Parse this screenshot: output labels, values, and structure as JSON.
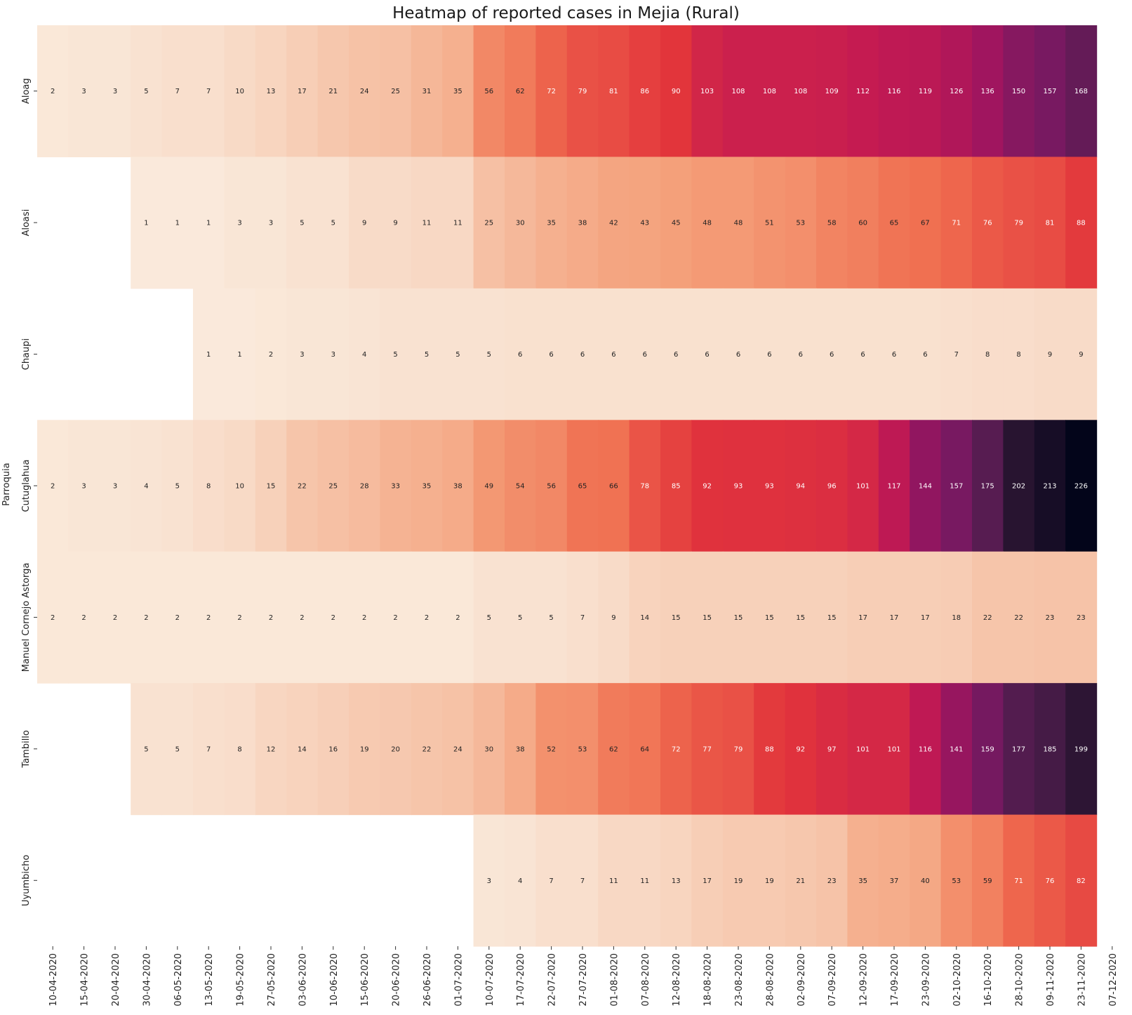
{
  "chart_data": {
    "type": "heatmap",
    "title": "Heatmap of reported cases in Mejia (Rural)",
    "ylabel": "Parroquia",
    "xlabel": "",
    "x": [
      "10-04-2020",
      "15-04-2020",
      "20-04-2020",
      "30-04-2020",
      "06-05-2020",
      "13-05-2020",
      "19-05-2020",
      "27-05-2020",
      "03-06-2020",
      "10-06-2020",
      "15-06-2020",
      "20-06-2020",
      "26-06-2020",
      "01-07-2020",
      "10-07-2020",
      "17-07-2020",
      "22-07-2020",
      "27-07-2020",
      "01-08-2020",
      "07-08-2020",
      "12-08-2020",
      "18-08-2020",
      "23-08-2020",
      "28-08-2020",
      "02-09-2020",
      "07-09-2020",
      "12-09-2020",
      "17-09-2020",
      "23-09-2020",
      "02-10-2020",
      "16-10-2020",
      "28-10-2020",
      "09-11-2020",
      "23-11-2020",
      "07-12-2020"
    ],
    "rows": [
      "Aloag",
      "Aloasi",
      "Chaupi",
      "Cutuglahua",
      "Manuel Cornejo Astorga",
      "Tambillo",
      "Uyumbicho"
    ],
    "values": [
      [
        2,
        3,
        3,
        5,
        7,
        7,
        10,
        13,
        17,
        21,
        24,
        25,
        31,
        35,
        56,
        62,
        72,
        79,
        81,
        86,
        90,
        103,
        108,
        108,
        108,
        109,
        112,
        116,
        119,
        126,
        136,
        150,
        157,
        168,
        null
      ],
      [
        null,
        null,
        null,
        1,
        1,
        1,
        3,
        3,
        5,
        5,
        9,
        9,
        11,
        11,
        25,
        30,
        35,
        38,
        42,
        43,
        45,
        48,
        48,
        51,
        53,
        58,
        60,
        65,
        67,
        71,
        76,
        79,
        81,
        88,
        null
      ],
      [
        null,
        null,
        null,
        null,
        null,
        1,
        1,
        2,
        3,
        3,
        4,
        5,
        5,
        5,
        5,
        6,
        6,
        6,
        6,
        6,
        6,
        6,
        6,
        6,
        6,
        6,
        6,
        6,
        6,
        7,
        8,
        8,
        9,
        9,
        null
      ],
      [
        2,
        3,
        3,
        4,
        5,
        8,
        10,
        15,
        22,
        25,
        28,
        33,
        35,
        38,
        49,
        54,
        56,
        65,
        66,
        78,
        85,
        92,
        93,
        93,
        94,
        96,
        101,
        117,
        144,
        157,
        175,
        202,
        213,
        226,
        null
      ],
      [
        2,
        2,
        2,
        2,
        2,
        2,
        2,
        2,
        2,
        2,
        2,
        2,
        2,
        2,
        5,
        5,
        5,
        7,
        9,
        14,
        15,
        15,
        15,
        15,
        15,
        15,
        17,
        17,
        17,
        18,
        22,
        22,
        23,
        23,
        null
      ],
      [
        null,
        null,
        null,
        5,
        5,
        7,
        8,
        12,
        14,
        16,
        19,
        20,
        22,
        24,
        30,
        38,
        52,
        53,
        62,
        64,
        72,
        77,
        79,
        88,
        92,
        97,
        101,
        101,
        116,
        141,
        159,
        177,
        185,
        199,
        null
      ],
      [
        null,
        null,
        null,
        null,
        null,
        null,
        null,
        null,
        null,
        null,
        null,
        null,
        null,
        null,
        3,
        4,
        7,
        7,
        11,
        11,
        13,
        17,
        19,
        19,
        21,
        23,
        35,
        37,
        40,
        53,
        59,
        71,
        76,
        82,
        null
      ]
    ],
    "colorbar": false,
    "cmap": "rocket_r",
    "annotations": true
  }
}
